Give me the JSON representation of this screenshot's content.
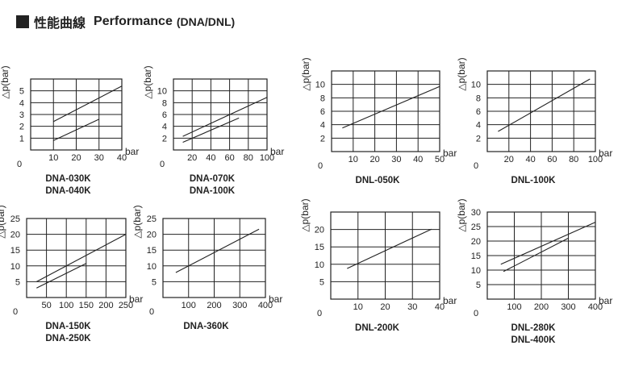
{
  "header": {
    "title_jp": "性能曲線",
    "title_en": "Performance",
    "title_sub": "(DNA/DNL)"
  },
  "chart_data": [
    {
      "type": "line",
      "ylabel": "△p(bar)",
      "xlabel": "bar",
      "xlim": [
        0,
        40
      ],
      "ylim": [
        0,
        6
      ],
      "xticks": [
        10,
        20,
        30,
        40
      ],
      "yticks": [
        1,
        2,
        3,
        4,
        5
      ],
      "xtick_labels": [
        "10",
        "20",
        "30",
        "40"
      ],
      "ytick_labels": [
        "1",
        "2",
        "3",
        "4",
        "5"
      ],
      "origin_label": "0",
      "series": [
        {
          "x": [
            10,
            40
          ],
          "y": [
            2.4,
            5.4
          ]
        },
        {
          "x": [
            10,
            30
          ],
          "y": [
            0.8,
            2.6
          ]
        }
      ],
      "models": [
        "DNA-030K",
        "DNA-040K"
      ]
    },
    {
      "type": "line",
      "ylabel": "△p(bar)",
      "xlabel": "bar",
      "xlim": [
        0,
        100
      ],
      "ylim": [
        0,
        12
      ],
      "xticks": [
        20,
        40,
        60,
        80,
        100
      ],
      "yticks": [
        2,
        4,
        6,
        8,
        10
      ],
      "xtick_labels": [
        "20",
        "40",
        "60",
        "80",
        "100"
      ],
      "ytick_labels": [
        "2",
        "4",
        "6",
        "8",
        "10"
      ],
      "origin_label": "0",
      "series": [
        {
          "x": [
            10,
            100
          ],
          "y": [
            2.3,
            8.9
          ]
        },
        {
          "x": [
            10,
            70
          ],
          "y": [
            1.3,
            5.4
          ]
        }
      ],
      "models": [
        "DNA-070K",
        "DNA-100K"
      ]
    },
    {
      "type": "line",
      "ylabel": "△p(bar)",
      "xlabel": "bar",
      "xlim": [
        0,
        50
      ],
      "ylim": [
        0,
        12
      ],
      "xticks": [
        10,
        20,
        30,
        40,
        50
      ],
      "yticks": [
        2,
        4,
        6,
        8,
        10
      ],
      "xtick_labels": [
        "10",
        "20",
        "30",
        "40",
        "50"
      ],
      "ytick_labels": [
        "2",
        "4",
        "6",
        "8",
        "10"
      ],
      "origin_label": "0",
      "series": [
        {
          "x": [
            5,
            50
          ],
          "y": [
            3.5,
            9.7
          ]
        }
      ],
      "models": [
        "DNL-050K"
      ]
    },
    {
      "type": "line",
      "ylabel": "△p(bar)",
      "xlabel": "bar",
      "xlim": [
        0,
        100
      ],
      "ylim": [
        0,
        12
      ],
      "xticks": [
        20,
        40,
        60,
        80,
        100
      ],
      "yticks": [
        2,
        4,
        6,
        8,
        10
      ],
      "xtick_labels": [
        "20",
        "40",
        "60",
        "80",
        "100"
      ],
      "ytick_labels": [
        "2",
        "4",
        "6",
        "8",
        "10"
      ],
      "origin_label": "0",
      "series": [
        {
          "x": [
            10,
            95
          ],
          "y": [
            3.0,
            10.8
          ]
        }
      ],
      "models": [
        "DNL-100K"
      ]
    },
    {
      "type": "line",
      "ylabel": "△p(bar)",
      "xlabel": "bar",
      "xlim": [
        0,
        250
      ],
      "ylim": [
        0,
        25
      ],
      "xticks": [
        50,
        100,
        150,
        200,
        250
      ],
      "yticks": [
        5,
        10,
        15,
        20,
        25
      ],
      "xtick_labels": [
        "50",
        "100",
        "150",
        "200",
        "250"
      ],
      "ytick_labels": [
        "5",
        "10",
        "15",
        "20",
        "25"
      ],
      "origin_label": "0",
      "series": [
        {
          "x": [
            25,
            250
          ],
          "y": [
            5.0,
            20.0
          ]
        },
        {
          "x": [
            25,
            150
          ],
          "y": [
            3.0,
            10.8
          ]
        }
      ],
      "models": [
        "DNA-150K",
        "DNA-250K"
      ]
    },
    {
      "type": "line",
      "ylabel": "△p(bar)",
      "xlabel": "bar",
      "xlim": [
        0,
        400
      ],
      "ylim": [
        0,
        25
      ],
      "xticks": [
        100,
        200,
        300,
        400
      ],
      "yticks": [
        5,
        10,
        15,
        20,
        25
      ],
      "xtick_labels": [
        "100",
        "200",
        "300",
        "400"
      ],
      "ytick_labels": [
        "5",
        "10",
        "15",
        "20",
        "25"
      ],
      "origin_label": "0",
      "series": [
        {
          "x": [
            50,
            375
          ],
          "y": [
            7.9,
            21.6
          ]
        }
      ],
      "models": [
        "DNA-360K"
      ]
    },
    {
      "type": "line",
      "ylabel": "△p(bar)",
      "xlabel": "bar",
      "xlim": [
        0,
        40
      ],
      "ylim": [
        0,
        25
      ],
      "xticks": [
        10,
        20,
        30,
        40
      ],
      "yticks": [
        5,
        10,
        15,
        20
      ],
      "xtick_labels": [
        "10",
        "20",
        "30",
        "40"
      ],
      "ytick_labels": [
        "5",
        "10",
        "15",
        "20"
      ],
      "origin_label": "0",
      "series": [
        {
          "x": [
            6,
            37
          ],
          "y": [
            8.8,
            20.1
          ]
        }
      ],
      "models": [
        "DNL-200K"
      ]
    },
    {
      "type": "line",
      "ylabel": "△p(bar)",
      "xlabel": "bar",
      "xlim": [
        0,
        400
      ],
      "ylim": [
        0,
        30
      ],
      "xticks": [
        100,
        200,
        300,
        400
      ],
      "yticks": [
        5,
        10,
        15,
        20,
        25,
        30
      ],
      "xtick_labels": [
        "100",
        "200",
        "300",
        "400"
      ],
      "ytick_labels": [
        "5",
        "10",
        "15",
        "20",
        "25",
        "30"
      ],
      "origin_label": "0",
      "series": [
        {
          "x": [
            50,
            400
          ],
          "y": [
            12.0,
            26.5
          ]
        },
        {
          "x": [
            60,
            300
          ],
          "y": [
            9.5,
            21.0
          ]
        }
      ],
      "models": [
        "DNL-280K",
        "DNL-400K"
      ]
    }
  ]
}
